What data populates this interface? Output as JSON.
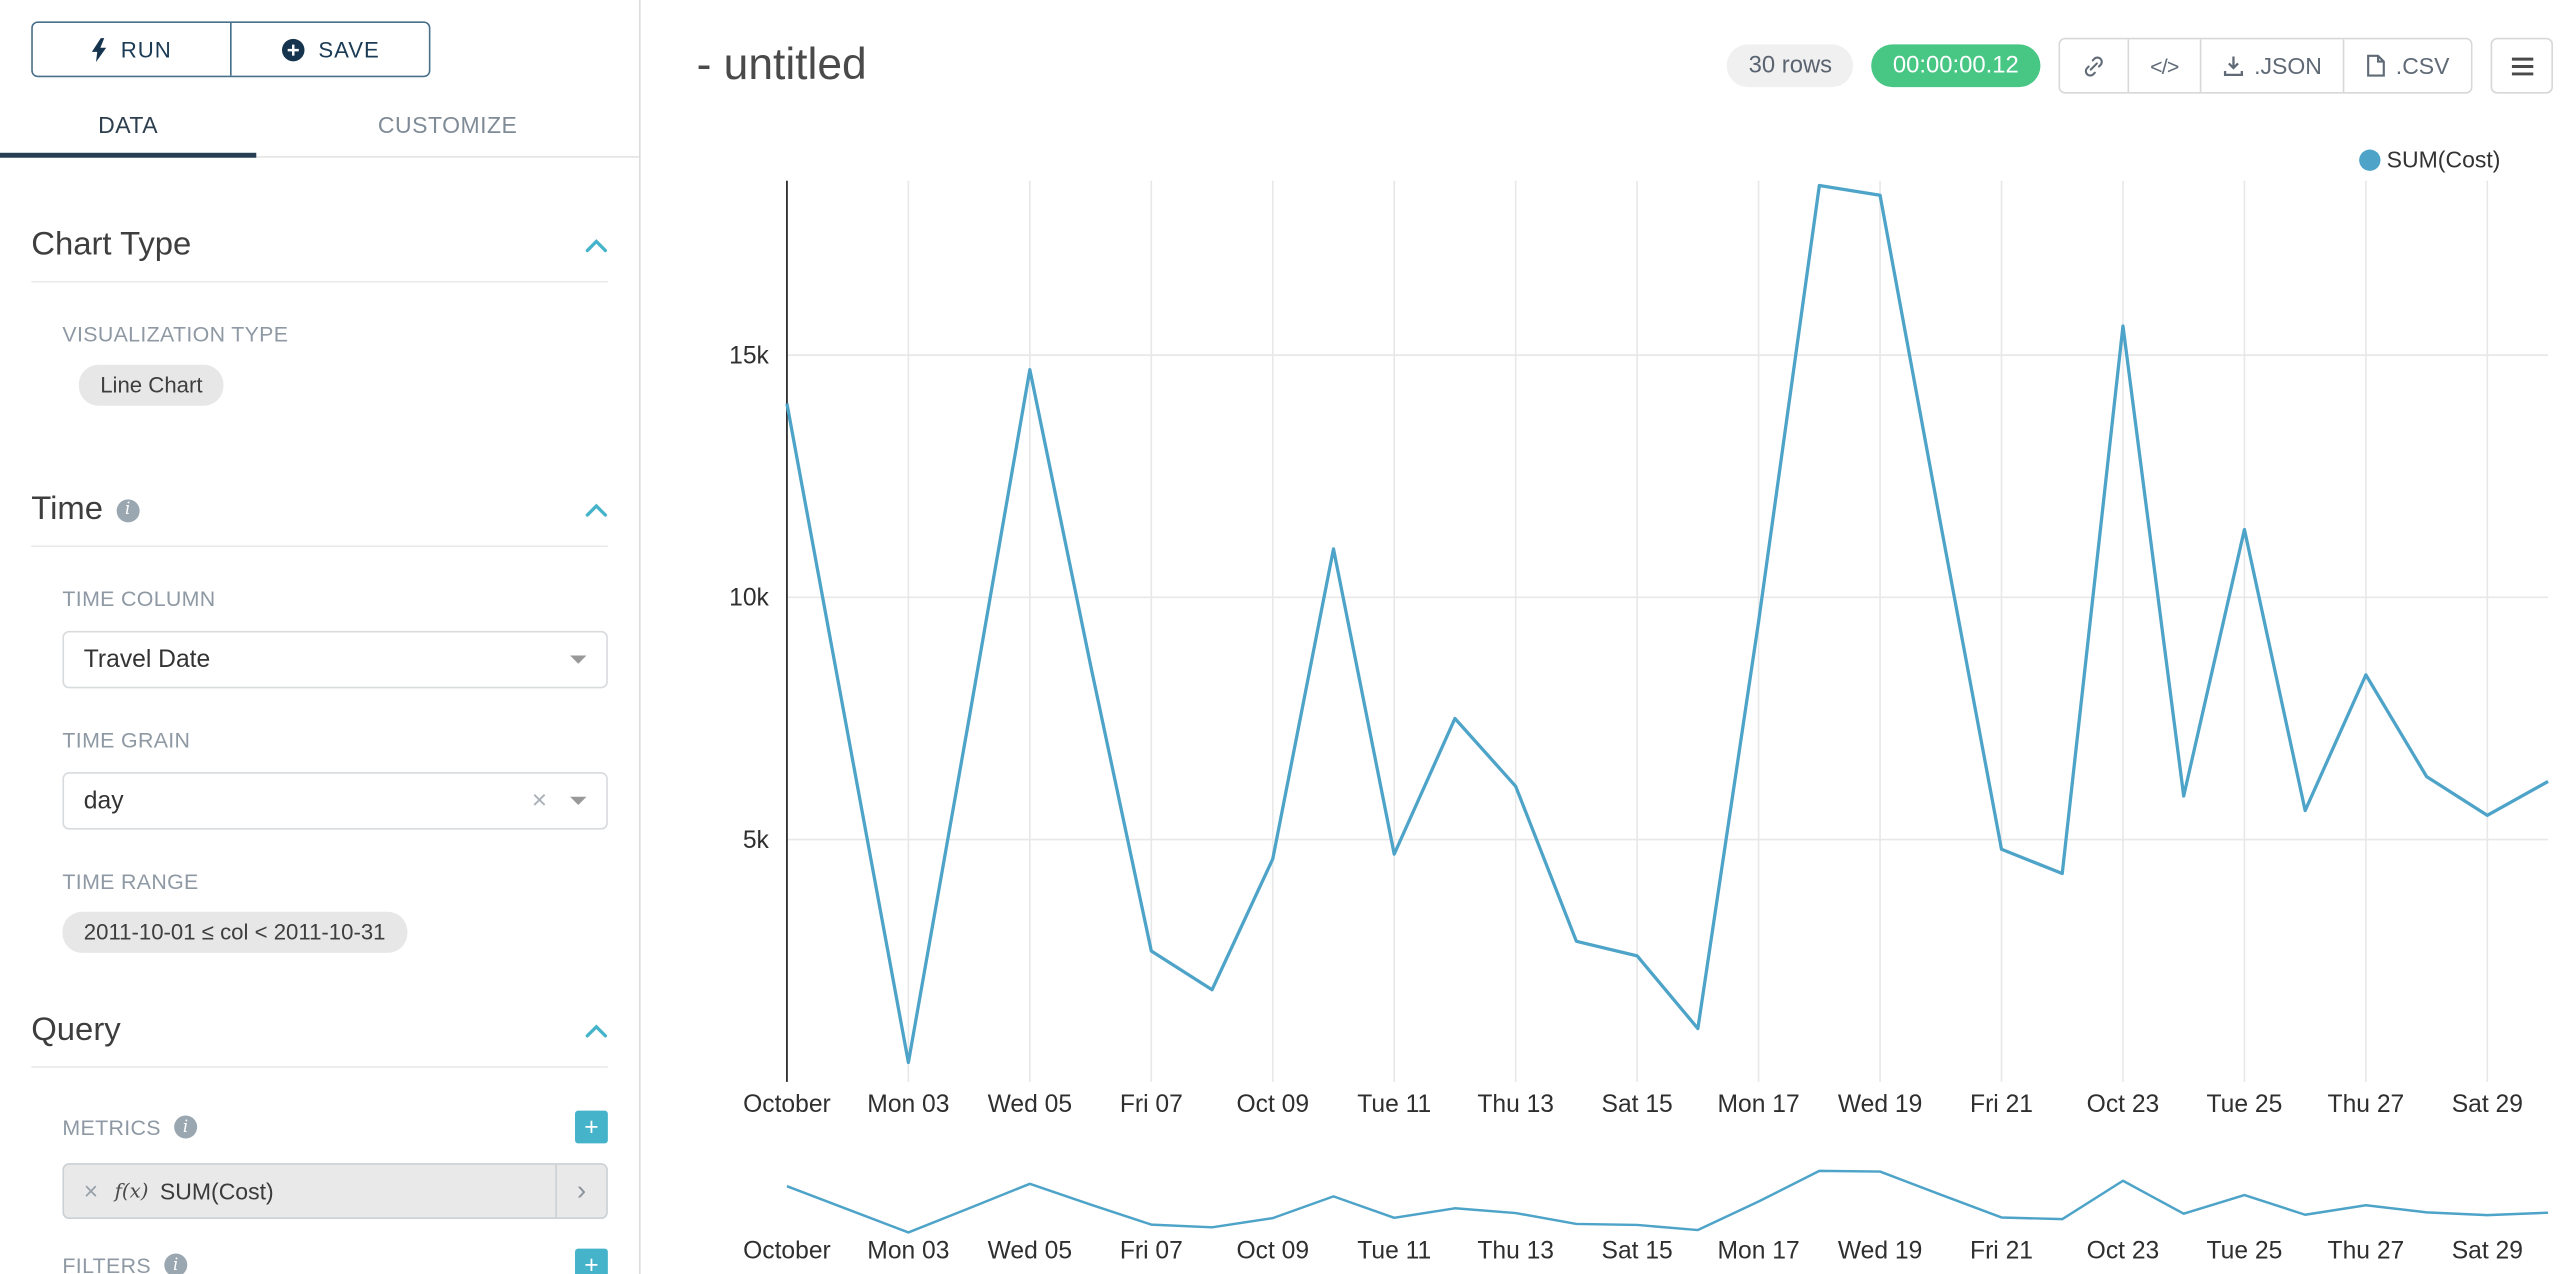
{
  "colors": {
    "accent_teal": "#45b3c9",
    "chart_line": "#4da3c8",
    "timer_green": "#47c684",
    "tab_underline": "#263d52",
    "run_save_border": "#49708a",
    "run_save_text": "#1b3a54"
  },
  "glyphs": {
    "add": "+",
    "clear": "×",
    "expand_caret": "›"
  },
  "icons": {
    "run-icon": "lightning-bolt",
    "save-icon": "plus-circle",
    "info-icon": "i-circle",
    "collapse-icon": "chevron-up",
    "dropdown-caret-icon": "chevron-down",
    "clear-icon": "x-cross",
    "add-icon": "plus-square",
    "metric-expand-icon": "chevron-right",
    "share-link-icon": "chain-link",
    "embed-icon": "code-brackets",
    "json-export-icon": "download-arrow",
    "csv-export-icon": "file-sheet",
    "menu-icon": "hamburger-bars"
  },
  "sidebar": {
    "run_label": "RUN",
    "save_label": "SAVE",
    "tabs": [
      {
        "label": "DATA",
        "active": true
      },
      {
        "label": "CUSTOMIZE",
        "active": false
      }
    ],
    "chart_type_section": {
      "title": "Chart Type",
      "visualization_type_label": "VISUALIZATION TYPE",
      "visualization_type_value": "Line Chart"
    },
    "time_section": {
      "title": "Time",
      "time_column_label": "TIME COLUMN",
      "time_column_value": "Travel Date",
      "time_grain_label": "TIME GRAIN",
      "time_grain_value": "day",
      "time_range_label": "TIME RANGE",
      "time_range_value": "2011-10-01 ≤ col < 2011-10-31"
    },
    "query_section": {
      "title": "Query",
      "metrics_label": "METRICS",
      "metric_fx": "f(x)",
      "metric_value": "SUM(Cost)",
      "filters_label": "FILTERS"
    }
  },
  "header": {
    "title": "- untitled",
    "rows_badge": "30 rows",
    "timer_badge": "00:00:00.12",
    "embed_label": "</>",
    "json_label": ".JSON",
    "csv_label": ".CSV"
  },
  "legend": {
    "label": "SUM(Cost)"
  },
  "chart_data": {
    "type": "line",
    "title": "- untitled",
    "xlabel": "",
    "ylabel": "",
    "x": [
      "2011-10-01",
      "2011-10-02",
      "2011-10-03",
      "2011-10-04",
      "2011-10-05",
      "2011-10-06",
      "2011-10-07",
      "2011-10-08",
      "2011-10-09",
      "2011-10-10",
      "2011-10-11",
      "2011-10-12",
      "2011-10-13",
      "2011-10-14",
      "2011-10-15",
      "2011-10-16",
      "2011-10-17",
      "2011-10-18",
      "2011-10-19",
      "2011-10-20",
      "2011-10-21",
      "2011-10-22",
      "2011-10-23",
      "2011-10-24",
      "2011-10-25",
      "2011-10-26",
      "2011-10-27",
      "2011-10-28",
      "2011-10-29",
      "2011-10-30"
    ],
    "series": [
      {
        "name": "SUM(Cost)",
        "color": "#4da3c8",
        "values": [
          14000,
          7200,
          400,
          7500,
          14700,
          8600,
          2700,
          1900,
          4600,
          11000,
          4700,
          7500,
          6100,
          2900,
          2600,
          1100,
          9500,
          18500,
          18300,
          11500,
          4800,
          4300,
          15600,
          5900,
          11400,
          5600,
          8400,
          6300,
          5500,
          6200
        ]
      }
    ],
    "x_tick_labels": [
      "October",
      "Mon 03",
      "Wed 05",
      "Fri 07",
      "Oct 09",
      "Tue 11",
      "Thu 13",
      "Sat 15",
      "Mon 17",
      "Wed 19",
      "Fri 21",
      "Oct 23",
      "Tue 25",
      "Thu 27",
      "Sat 29"
    ],
    "x_tick_indices": [
      0,
      2,
      4,
      6,
      8,
      10,
      12,
      14,
      16,
      18,
      20,
      22,
      24,
      26,
      28
    ],
    "y_ticks": [
      {
        "value": 5000,
        "label": "5k"
      },
      {
        "value": 10000,
        "label": "10k"
      },
      {
        "value": 15000,
        "label": "15k"
      }
    ],
    "ylim": [
      0,
      18600
    ],
    "grid": true,
    "legend_position": "top-right",
    "has_range_minimap": true
  }
}
